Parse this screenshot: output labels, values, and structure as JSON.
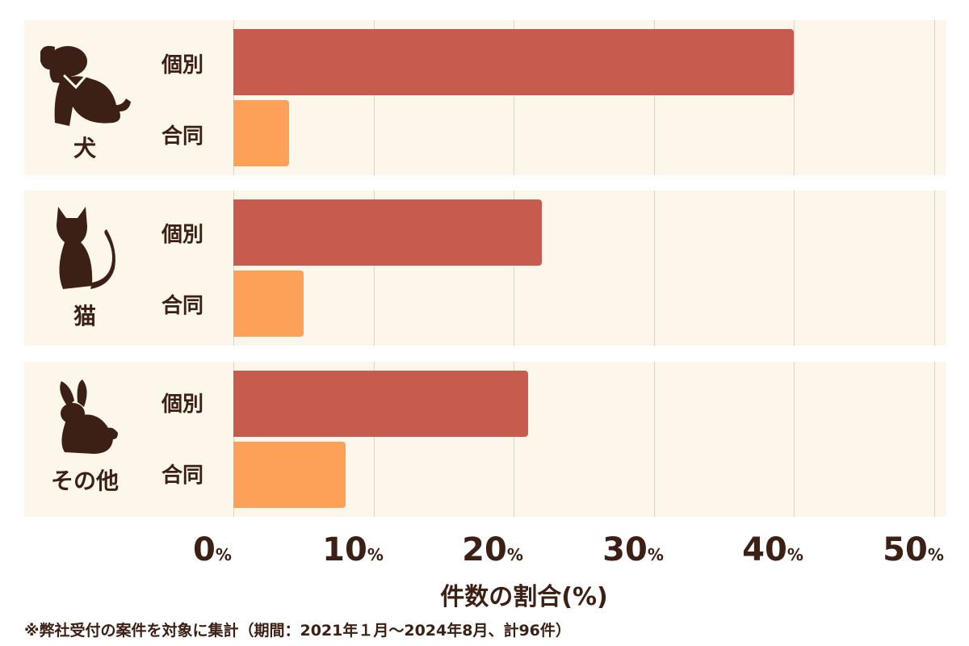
{
  "colors": {
    "individual": "#c75c4e",
    "joint": "#fca157",
    "panel_bg": "#fcf7ea",
    "text": "#3d2015"
  },
  "icons": [
    "dog-icon",
    "cat-icon",
    "rabbit-icon"
  ],
  "chart_data": {
    "type": "bar",
    "orientation": "horizontal",
    "categories": [
      "犬",
      "猫",
      "その他"
    ],
    "subcategories": [
      "個別",
      "合同"
    ],
    "series": [
      {
        "values": [
          40.0,
          22.0,
          21.0
        ]
      },
      {
        "values": [
          4.0,
          5.0,
          8.0
        ]
      }
    ],
    "xlim": [
      0,
      50
    ],
    "ticks": [
      "0",
      "10",
      "20",
      "30",
      "40",
      "50"
    ],
    "tick_unit": "%",
    "xlabel": "件数の割合(%)",
    "grid": true,
    "note": "※弊社受付の案件を対象に集計（期間：2021年１月〜2024年8月、計96件）"
  }
}
